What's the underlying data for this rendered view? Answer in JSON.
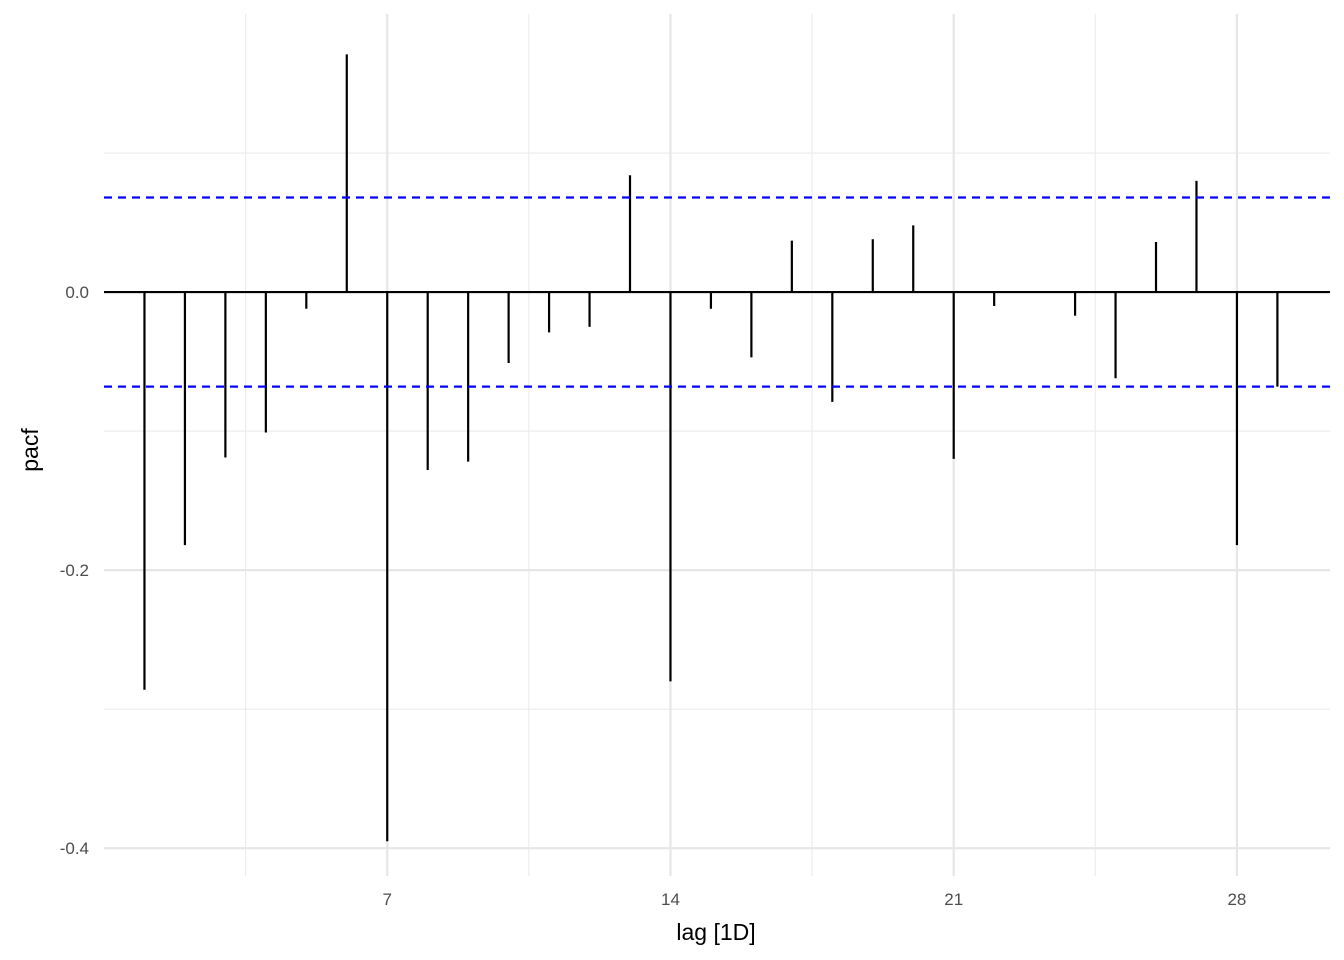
{
  "chart_data": {
    "type": "bar",
    "subtype": "pacf-lollipop",
    "xlabel": "lag [1D]",
    "ylabel": "pacf",
    "x_ticks": [
      7,
      14,
      21,
      28
    ],
    "x_tick_labels": [
      "7",
      "14",
      "21",
      "28"
    ],
    "y_ticks": [
      0.0,
      -0.2,
      -0.4
    ],
    "y_tick_labels": [
      "0.0",
      "-0.2",
      "-0.4"
    ],
    "xlim": [
      0.0,
      30.3
    ],
    "ylim": [
      -0.42,
      0.2
    ],
    "grid": true,
    "confidence_band": [
      0.068,
      -0.068
    ],
    "confidence_color": "#0000ff",
    "bar_color": "#000000",
    "lags": [
      1,
      2,
      3,
      4,
      5,
      6,
      7,
      8,
      9,
      10,
      11,
      12,
      13,
      14,
      15,
      16,
      17,
      18,
      19,
      20,
      21,
      22,
      23,
      24,
      25,
      26,
      27,
      28,
      29
    ],
    "values": [
      -0.286,
      -0.182,
      -0.119,
      -0.101,
      -0.012,
      0.171,
      -0.395,
      -0.128,
      -0.122,
      -0.051,
      -0.029,
      -0.025,
      0.084,
      -0.28,
      -0.012,
      -0.047,
      0.037,
      -0.079,
      0.038,
      0.048,
      -0.12,
      -0.01,
      0.0,
      -0.017,
      -0.062,
      0.036,
      0.08,
      -0.182,
      -0.068
    ]
  }
}
